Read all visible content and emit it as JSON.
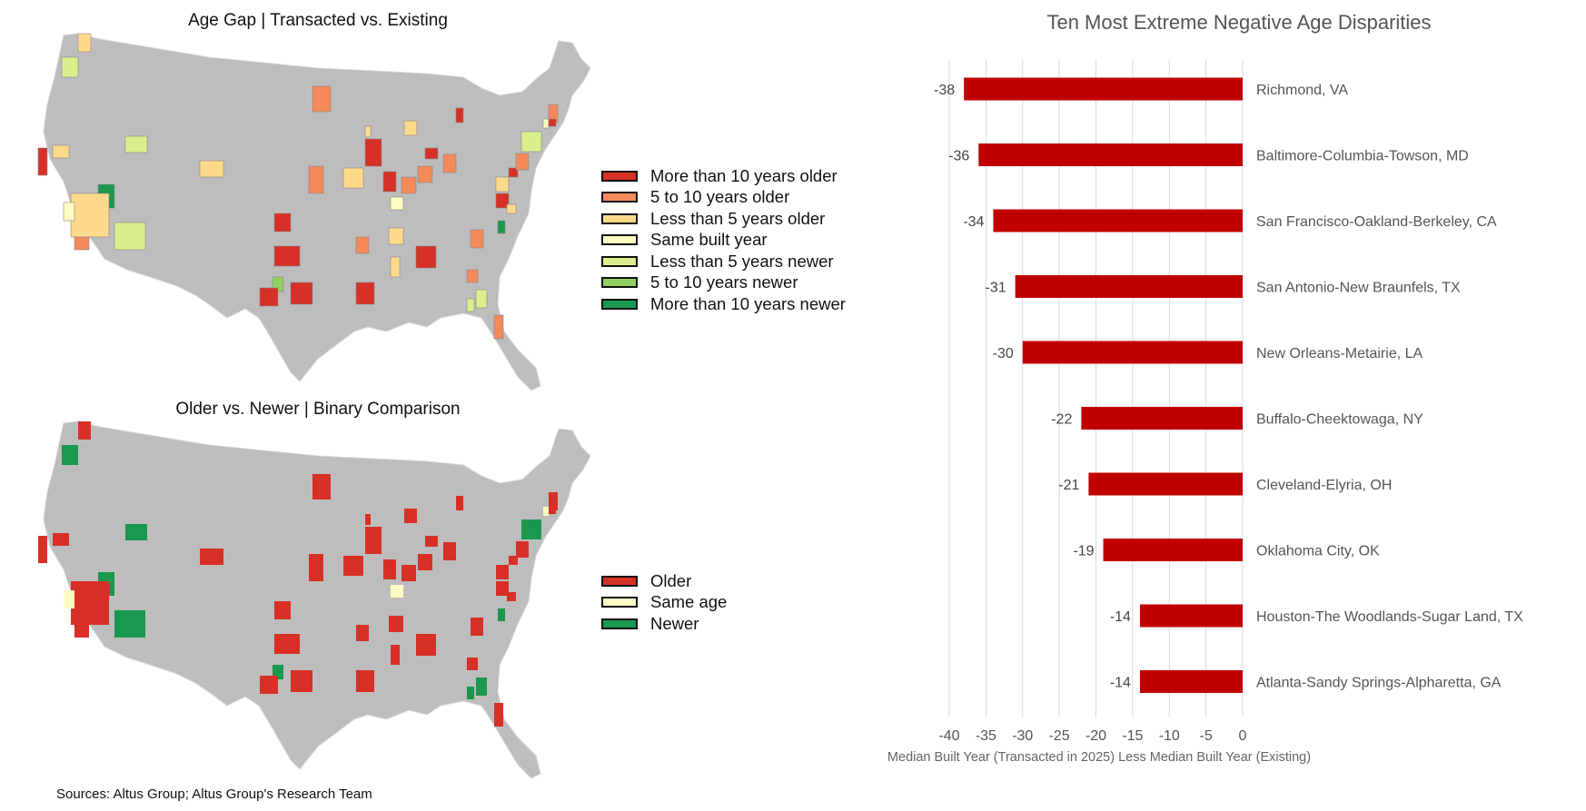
{
  "maps": [
    {
      "title": "Age Gap | Transacted vs. Existing",
      "legend": [
        {
          "label": "More than 10 years older",
          "color": "#d73027"
        },
        {
          "label": "5 to 10 years older",
          "color": "#f4895a"
        },
        {
          "label": "Less than 5 years older",
          "color": "#fdd98a"
        },
        {
          "label": "Same built year",
          "color": "#fefcc2"
        },
        {
          "label": "Less than 5 years newer",
          "color": "#d9ef8b"
        },
        {
          "label": "5 to 10 years newer",
          "color": "#91cf60"
        },
        {
          "label": "More than 10 years newer",
          "color": "#1a9850"
        }
      ]
    },
    {
      "title": "Older vs. Newer | Binary Comparison",
      "legend": [
        {
          "label": "Older",
          "color": "#d73027"
        },
        {
          "label": "Same age",
          "color": "#fefcc2"
        },
        {
          "label": "Newer",
          "color": "#1a9850"
        }
      ]
    }
  ],
  "sources": "Sources: Altus Group; Altus Group's Research Team",
  "chart_data": {
    "type": "bar",
    "orientation": "horizontal",
    "title": "Ten Most Extreme Negative Age Disparities",
    "xlabel": "Median Built Year (Transacted in 2025) Less Median Built Year (Existing)",
    "ylabel": "",
    "xlim": [
      -40,
      0
    ],
    "xticks": [
      -40,
      -35,
      -30,
      -25,
      -20,
      -15,
      -10,
      -5,
      0
    ],
    "grid": true,
    "bar_color": "#c00000",
    "categories": [
      "Richmond, VA",
      "Baltimore-Columbia-Towson, MD",
      "San Francisco-Oakland-Berkeley, CA",
      "San Antonio-New Braunfels, TX",
      "New Orleans-Metairie, LA",
      "Buffalo-Cheektowaga, NY",
      "Cleveland-Elyria, OH",
      "Oklahoma City, OK",
      "Houston-The Woodlands-Sugar Land, TX",
      "Atlanta-Sandy Springs-Alpharetta, GA"
    ],
    "values": [
      -38,
      -36,
      -34,
      -31,
      -30,
      -22,
      -21,
      -19,
      -14,
      -14
    ]
  }
}
